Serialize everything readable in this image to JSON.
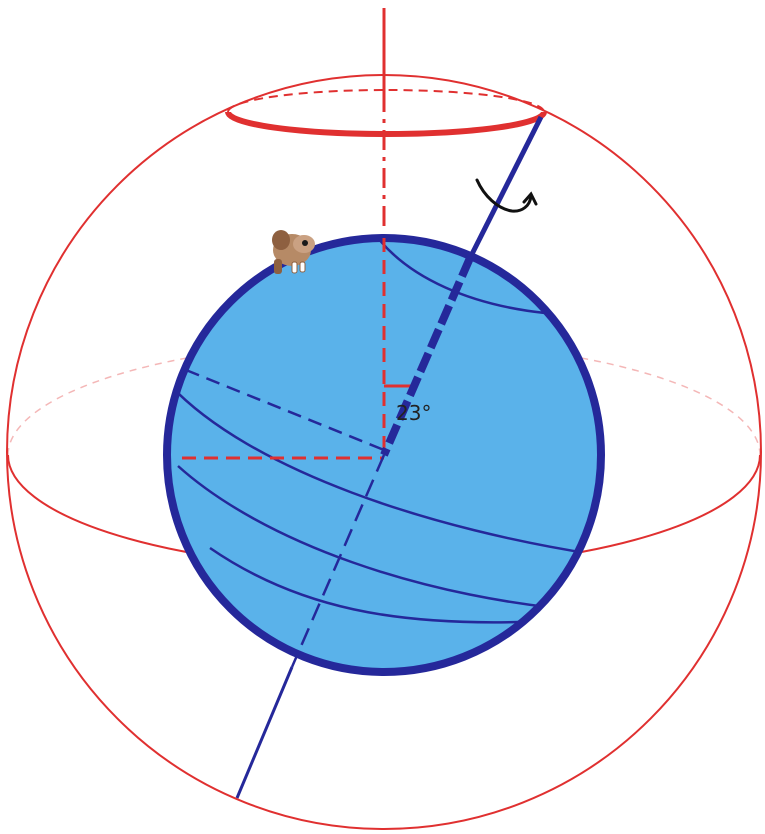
{
  "diagram": {
    "angle_label": "23°",
    "colors": {
      "celestial_sphere": "#e03030",
      "earth_fill": "#5ab2ea",
      "earth_outline": "#25289a",
      "axis": "#25289a",
      "rotation_arrow": "#111111",
      "label": "#222222",
      "background": "#ffffff"
    },
    "icons": {
      "rotation_arrow": "curved-rotation-arrow-icon",
      "observer": "observer-figure-icon"
    }
  }
}
